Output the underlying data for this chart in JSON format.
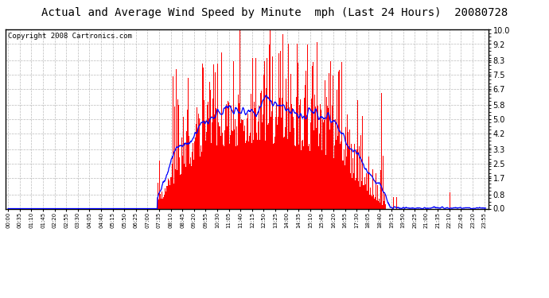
{
  "title": "Actual and Average Wind Speed by Minute  mph (Last 24 Hours)  20080728",
  "copyright": "Copyright 2008 Cartronics.com",
  "yticks": [
    0.0,
    0.8,
    1.7,
    2.5,
    3.3,
    4.2,
    5.0,
    5.8,
    6.7,
    7.5,
    8.3,
    9.2,
    10.0
  ],
  "ylim": [
    0.0,
    10.0
  ],
  "bar_color": "#ff0000",
  "line_color": "#0000ff",
  "bg_color": "#ffffff",
  "grid_color": "#bbbbbb",
  "title_fontsize": 10,
  "copyright_fontsize": 6.5,
  "n_minutes": 1440
}
